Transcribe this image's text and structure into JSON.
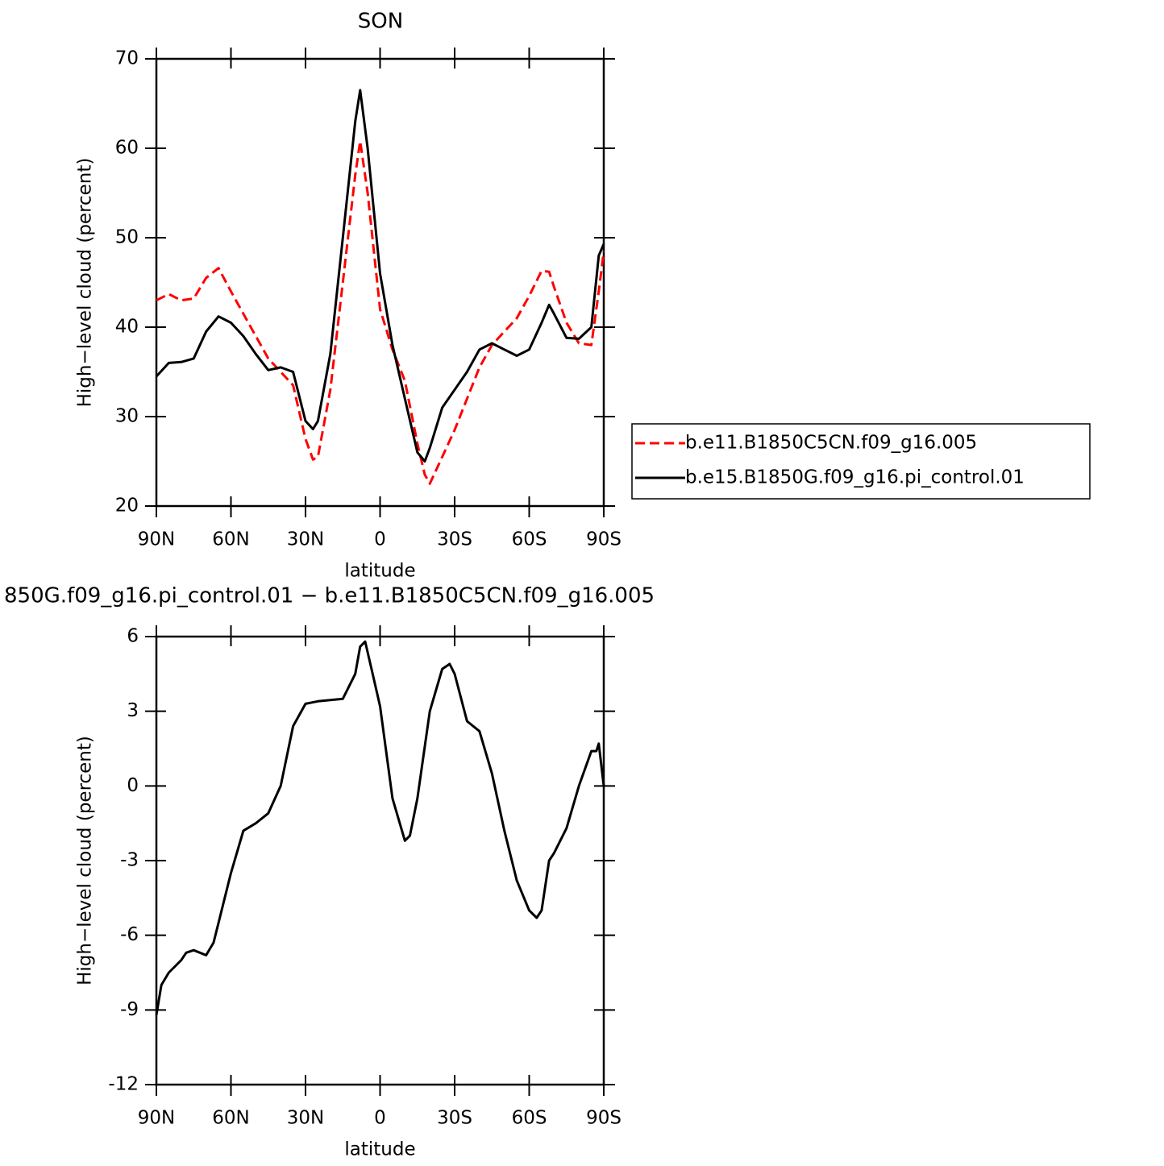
{
  "chart_data": [
    {
      "type": "line",
      "title": "SON",
      "xlabel": "latitude",
      "ylabel": "High−level cloud (percent)",
      "x": [
        90,
        85,
        80,
        75,
        70,
        65,
        60,
        55,
        50,
        45,
        40,
        35,
        30,
        27,
        25,
        20,
        15,
        10,
        8,
        5,
        0,
        -5,
        -10,
        -15,
        -18,
        -20,
        -25,
        -30,
        -35,
        -40,
        -45,
        -50,
        -55,
        -60,
        -65,
        -68,
        -70,
        -75,
        -80,
        -85,
        -88,
        -90
      ],
      "series": [
        {
          "name": "b.e11.B1850C5CN.f09_g16.005",
          "color": "#ff0000",
          "dash": true,
          "values": [
            43,
            43.7,
            43,
            43.2,
            45.5,
            46.6,
            44,
            41.5,
            39,
            36.5,
            35,
            33.5,
            27.5,
            25.2,
            25.5,
            33,
            45,
            57,
            60.8,
            55,
            42,
            37.5,
            34,
            27,
            23.5,
            22.5,
            25.5,
            28.5,
            32,
            35.5,
            38,
            39.5,
            41,
            43.5,
            46.3,
            46.2,
            44.5,
            40.5,
            38.2,
            38,
            44,
            48.5
          ]
        },
        {
          "name": "b.e15.B1850G.f09_g16.pi_control.01",
          "color": "#000000",
          "dash": false,
          "values": [
            34.5,
            36,
            36.1,
            36.5,
            39.5,
            41.2,
            40.5,
            39,
            37,
            35.2,
            35.5,
            35,
            29.5,
            28.6,
            29.5,
            37,
            50,
            63,
            66.5,
            60,
            46,
            38,
            32,
            26,
            25,
            26.5,
            31,
            33,
            35,
            37.5,
            38.2,
            37.5,
            36.8,
            37.5,
            40.5,
            42.5,
            41.5,
            38.8,
            38.7,
            40,
            48,
            49.3
          ]
        }
      ],
      "xlim": [
        90,
        -90
      ],
      "xticks": [
        {
          "value": 90,
          "label": "90N"
        },
        {
          "value": 60,
          "label": "60N"
        },
        {
          "value": 30,
          "label": "30N"
        },
        0,
        {
          "value": -30,
          "label": "30S"
        },
        {
          "value": -60,
          "label": "60S"
        },
        {
          "value": -90,
          "label": "90S"
        }
      ],
      "ylim": [
        20,
        70
      ],
      "yticks": [
        20,
        30,
        40,
        50,
        60,
        70
      ],
      "legend": "right"
    },
    {
      "type": "line",
      "title": "850G.f09_g16.pi_control.01 − b.e11.B1850C5CN.f09_g16.005",
      "xlabel": "latitude",
      "ylabel": "High−level cloud (percent)",
      "x": [
        90,
        88,
        85,
        80,
        78,
        75,
        70,
        67,
        65,
        60,
        55,
        50,
        45,
        40,
        35,
        30,
        25,
        20,
        15,
        10,
        8,
        6,
        3,
        0,
        -5,
        -10,
        -12,
        -15,
        -20,
        -25,
        -28,
        -30,
        -35,
        -40,
        -45,
        -50,
        -55,
        -60,
        -63,
        -65,
        -68,
        -70,
        -75,
        -80,
        -85,
        -87,
        -88,
        -90
      ],
      "series": [
        {
          "color": "#000000",
          "dash": false,
          "values": [
            -9.2,
            -8,
            -7.5,
            -7,
            -6.7,
            -6.6,
            -6.8,
            -6.3,
            -5.5,
            -3.5,
            -1.8,
            -1.5,
            -1.1,
            0,
            2.4,
            3.3,
            3.4,
            3.45,
            3.5,
            4.5,
            5.6,
            5.8,
            4.5,
            3.2,
            -0.5,
            -2.2,
            -2,
            -0.5,
            3,
            4.7,
            4.9,
            4.5,
            2.6,
            2.2,
            0.5,
            -1.8,
            -3.8,
            -5,
            -5.3,
            -5,
            -3,
            -2.7,
            -1.7,
            0,
            1.4,
            1.4,
            1.7,
            0
          ]
        }
      ],
      "xlim": [
        90,
        -90
      ],
      "xticks": [
        {
          "value": 90,
          "label": "90N"
        },
        {
          "value": 60,
          "label": "60N"
        },
        {
          "value": 30,
          "label": "30N"
        },
        0,
        {
          "value": -30,
          "label": "30S"
        },
        {
          "value": -60,
          "label": "60S"
        },
        {
          "value": -90,
          "label": "90S"
        }
      ],
      "ylim": [
        -12,
        6
      ],
      "yticks": [
        -12,
        -9,
        -6,
        -3,
        0,
        3,
        6
      ]
    }
  ]
}
